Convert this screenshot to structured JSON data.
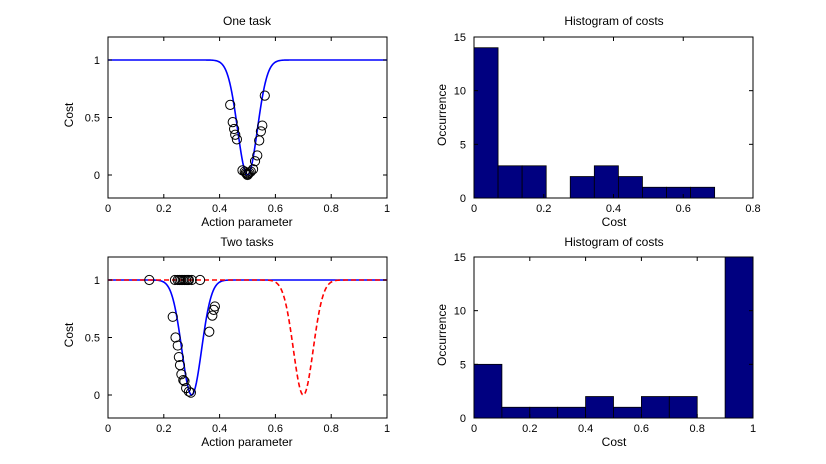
{
  "figure": {
    "background": "#ffffff",
    "axes_color": "#000000"
  },
  "chart_data": [
    {
      "id": "p1",
      "type": "line",
      "title": "One task",
      "xlabel": "Action parameter",
      "ylabel": "Cost",
      "xlim": [
        0,
        1
      ],
      "ylim": [
        -0.2,
        1.2
      ],
      "xticks": [
        0,
        0.2,
        0.4,
        0.6,
        0.8,
        1
      ],
      "xtick_labels": [
        "0",
        "0.2",
        "0.4",
        "0.6",
        "0.8",
        "1"
      ],
      "yticks": [
        0,
        0.5,
        1
      ],
      "ytick_labels": [
        "0",
        "0.5",
        "1"
      ],
      "grid": false,
      "series": [
        {
          "kind": "line",
          "style": "solid",
          "color": "#0000ff",
          "curve": {
            "center": 0.5,
            "width": 0.05
          }
        },
        {
          "kind": "marker",
          "marker": "circle-open",
          "color": "#000000",
          "x": [
            0.438,
            0.447,
            0.452,
            0.456,
            0.462,
            0.482,
            0.49,
            0.494,
            0.497,
            0.5,
            0.503,
            0.507,
            0.512,
            0.52,
            0.527,
            0.535,
            0.542,
            0.548,
            0.553,
            0.562
          ],
          "y": [
            0.61,
            0.46,
            0.4,
            0.35,
            0.31,
            0.04,
            0.03,
            0.02,
            0.01,
            0.0,
            0.01,
            0.02,
            0.03,
            0.05,
            0.12,
            0.17,
            0.3,
            0.38,
            0.43,
            0.69
          ]
        }
      ]
    },
    {
      "id": "p2",
      "type": "bar",
      "title": "Histogram of costs",
      "xlabel": "Cost",
      "ylabel": "Occurrence",
      "xlim": [
        0,
        0.8
      ],
      "ylim": [
        0,
        15
      ],
      "xticks": [
        0,
        0.2,
        0.4,
        0.6,
        0.8
      ],
      "xtick_labels": [
        "0",
        "0.2",
        "0.4",
        "0.6",
        "0.8"
      ],
      "yticks": [
        0,
        5,
        10,
        15
      ],
      "ytick_labels": [
        "0",
        "5",
        "10",
        "15"
      ],
      "grid": false,
      "bar_color": "#000080",
      "bar_edge": "#000000",
      "bins": [
        {
          "x0": 0.0,
          "x1": 0.069,
          "count": 14
        },
        {
          "x0": 0.069,
          "x1": 0.138,
          "count": 3
        },
        {
          "x0": 0.138,
          "x1": 0.207,
          "count": 3
        },
        {
          "x0": 0.207,
          "x1": 0.276,
          "count": 0
        },
        {
          "x0": 0.276,
          "x1": 0.345,
          "count": 2
        },
        {
          "x0": 0.345,
          "x1": 0.414,
          "count": 3
        },
        {
          "x0": 0.414,
          "x1": 0.483,
          "count": 2
        },
        {
          "x0": 0.483,
          "x1": 0.552,
          "count": 1
        },
        {
          "x0": 0.552,
          "x1": 0.621,
          "count": 1
        },
        {
          "x0": 0.621,
          "x1": 0.69,
          "count": 1
        }
      ]
    },
    {
      "id": "p3",
      "type": "line",
      "title": "Two tasks",
      "xlabel": "Action parameter",
      "ylabel": "Cost",
      "xlim": [
        0,
        1
      ],
      "ylim": [
        -0.2,
        1.2
      ],
      "xticks": [
        0,
        0.2,
        0.4,
        0.6,
        0.8,
        1
      ],
      "xtick_labels": [
        "0",
        "0.2",
        "0.4",
        "0.6",
        "0.8",
        "1"
      ],
      "yticks": [
        0,
        0.5,
        1
      ],
      "ytick_labels": [
        "0",
        "0.5",
        "1"
      ],
      "grid": false,
      "series": [
        {
          "kind": "line",
          "style": "solid",
          "color": "#0000ff",
          "curve": {
            "center": 0.3,
            "width": 0.05
          }
        },
        {
          "kind": "line",
          "style": "dashed",
          "color": "#ff0000",
          "curve": {
            "center": 0.7,
            "width": 0.05
          }
        },
        {
          "kind": "marker",
          "marker": "circle-open",
          "color": "#000000",
          "x": [
            0.148,
            0.232,
            0.242,
            0.25,
            0.254,
            0.258,
            0.263,
            0.27,
            0.274,
            0.28,
            0.29,
            0.297,
            0.363,
            0.374,
            0.379,
            0.383,
            0.24,
            0.25,
            0.256,
            0.262,
            0.268,
            0.274,
            0.28,
            0.286,
            0.29,
            0.3,
            0.33
          ],
          "y": [
            1.0,
            0.68,
            0.5,
            0.43,
            0.33,
            0.26,
            0.18,
            0.13,
            0.12,
            0.06,
            0.03,
            0.02,
            0.55,
            0.69,
            0.74,
            0.77,
            1.0,
            1.0,
            1.0,
            1.0,
            1.0,
            1.0,
            1.0,
            1.0,
            1.0,
            1.0,
            1.0
          ]
        }
      ]
    },
    {
      "id": "p4",
      "type": "bar",
      "title": "Histogram of costs",
      "xlabel": "Cost",
      "ylabel": "Occurrence",
      "xlim": [
        0,
        1
      ],
      "ylim": [
        0,
        15
      ],
      "xticks": [
        0,
        0.2,
        0.4,
        0.6,
        0.8,
        1
      ],
      "xtick_labels": [
        "0",
        "0.2",
        "0.4",
        "0.6",
        "0.8",
        "1"
      ],
      "yticks": [
        0,
        5,
        10,
        15
      ],
      "ytick_labels": [
        "0",
        "5",
        "10",
        "15"
      ],
      "grid": false,
      "bar_color": "#000080",
      "bar_edge": "#000000",
      "bins": [
        {
          "x0": 0.0,
          "x1": 0.1,
          "count": 5
        },
        {
          "x0": 0.1,
          "x1": 0.2,
          "count": 1
        },
        {
          "x0": 0.2,
          "x1": 0.3,
          "count": 1
        },
        {
          "x0": 0.3,
          "x1": 0.4,
          "count": 1
        },
        {
          "x0": 0.4,
          "x1": 0.5,
          "count": 2
        },
        {
          "x0": 0.5,
          "x1": 0.6,
          "count": 1
        },
        {
          "x0": 0.6,
          "x1": 0.7,
          "count": 2
        },
        {
          "x0": 0.7,
          "x1": 0.8,
          "count": 2
        },
        {
          "x0": 0.8,
          "x1": 0.9,
          "count": 0
        },
        {
          "x0": 0.9,
          "x1": 1.0,
          "count": 15
        }
      ]
    }
  ]
}
